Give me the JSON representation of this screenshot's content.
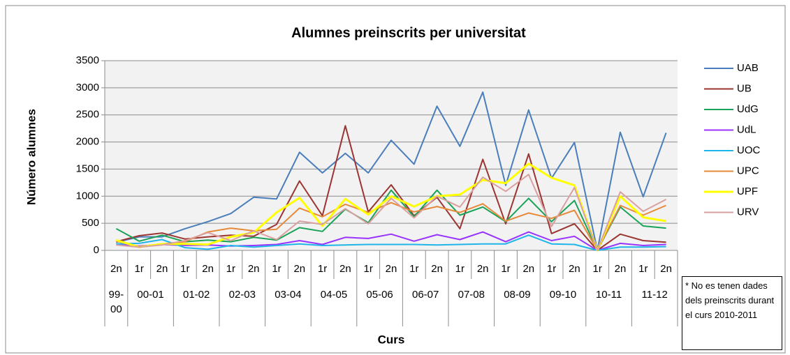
{
  "chart_data": {
    "type": "line",
    "title": "Alumnes preinscrits per universitat",
    "y_label": "Número alumnes",
    "x_label": "Curs",
    "annotation": "* No es tenen dades dels preinscrits durant el curs 2010-2011",
    "category_groups": [
      {
        "label": "99-00",
        "categories": [
          "2n"
        ]
      },
      {
        "label": "00-01",
        "categories": [
          "1r",
          "2n"
        ]
      },
      {
        "label": "01-02",
        "categories": [
          "1r",
          "2n"
        ]
      },
      {
        "label": "02-03",
        "categories": [
          "1r",
          "2n"
        ]
      },
      {
        "label": "03-04",
        "categories": [
          "1r",
          "2n"
        ]
      },
      {
        "label": "04-05",
        "categories": [
          "1r",
          "2n"
        ]
      },
      {
        "label": "05-06",
        "categories": [
          "1r",
          "2n"
        ]
      },
      {
        "label": "06-07",
        "categories": [
          "1r",
          "2n"
        ]
      },
      {
        "label": "07-08",
        "categories": [
          "1r",
          "2n"
        ]
      },
      {
        "label": "08-09",
        "categories": [
          "1r",
          "2n"
        ]
      },
      {
        "label": "09-10",
        "categories": [
          "1r",
          "2n"
        ]
      },
      {
        "label": "10-11",
        "categories": [
          "1r",
          "2n"
        ]
      },
      {
        "label": "11-12",
        "categories": [
          "1r",
          "2n"
        ]
      }
    ],
    "series": [
      {
        "name": "UAB",
        "color": "#4a7ebb",
        "values": [
          150,
          250,
          250,
          400,
          530,
          680,
          980,
          950,
          1810,
          1430,
          1790,
          1430,
          2030,
          1590,
          2660,
          1920,
          2920,
          1200,
          2590,
          1330,
          1990,
          0,
          2180,
          990,
          2170
        ]
      },
      {
        "name": "UB",
        "color": "#9b3531",
        "values": [
          160,
          270,
          320,
          210,
          250,
          280,
          260,
          480,
          1280,
          640,
          2300,
          710,
          1210,
          640,
          980,
          400,
          1680,
          490,
          1780,
          310,
          490,
          0,
          300,
          180,
          150
        ]
      },
      {
        "name": "UdG",
        "color": "#1aa356",
        "values": [
          400,
          170,
          280,
          160,
          190,
          160,
          240,
          190,
          420,
          350,
          760,
          510,
          1110,
          620,
          1110,
          650,
          800,
          530,
          960,
          530,
          920,
          0,
          800,
          450,
          410
        ]
      },
      {
        "name": "UdL",
        "color": "#9933ff",
        "values": [
          120,
          80,
          110,
          90,
          100,
          80,
          90,
          110,
          180,
          110,
          240,
          220,
          300,
          170,
          290,
          200,
          340,
          160,
          340,
          180,
          260,
          0,
          130,
          90,
          110
        ]
      },
      {
        "name": "UOC",
        "color": "#1fb5e8",
        "values": [
          120,
          130,
          200,
          50,
          20,
          90,
          60,
          90,
          120,
          90,
          100,
          110,
          110,
          110,
          100,
          110,
          120,
          120,
          280,
          120,
          110,
          0,
          60,
          60,
          70
        ]
      },
      {
        "name": "UPC",
        "color": "#e68a3a",
        "values": [
          170,
          70,
          120,
          160,
          340,
          410,
          360,
          390,
          780,
          620,
          850,
          700,
          880,
          710,
          810,
          700,
          860,
          540,
          690,
          590,
          740,
          0,
          830,
          650,
          830
        ]
      },
      {
        "name": "UPF",
        "color": "#ffff00",
        "values": [
          190,
          60,
          120,
          120,
          110,
          250,
          330,
          700,
          970,
          450,
          950,
          660,
          1000,
          810,
          1000,
          1030,
          1300,
          1240,
          1600,
          1340,
          1200,
          0,
          1000,
          610,
          540
        ]
      },
      {
        "name": "URV",
        "color": "#d9a09f",
        "values": [
          100,
          60,
          100,
          180,
          330,
          180,
          360,
          200,
          540,
          480,
          770,
          490,
          960,
          600,
          1000,
          800,
          1350,
          1090,
          1400,
          440,
          1160,
          0,
          1080,
          720,
          940
        ]
      }
    ],
    "ylim": [
      0,
      3500
    ],
    "yticks": [
      0,
      500,
      1000,
      1500,
      2000,
      2500,
      3000,
      3500
    ],
    "grid": true,
    "legend": "right"
  }
}
